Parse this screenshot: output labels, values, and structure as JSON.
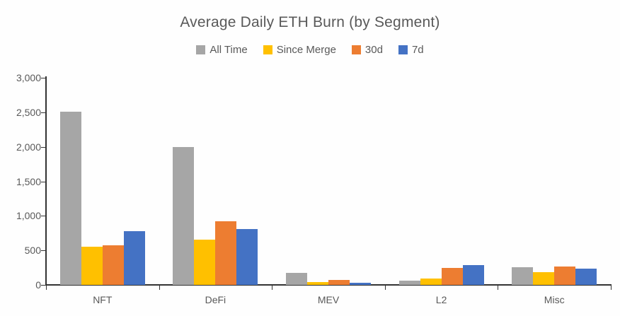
{
  "chart_data": {
    "type": "bar",
    "title": "Average Daily ETH Burn (by Segment)",
    "xlabel": "",
    "ylabel": "",
    "categories": [
      "NFT",
      "DeFi",
      "MEV",
      "L2",
      "Misc"
    ],
    "series": [
      {
        "name": "All Time",
        "color": "#a6a6a6",
        "values": [
          2510,
          2000,
          170,
          65,
          255
        ]
      },
      {
        "name": "Since Merge",
        "color": "#ffc000",
        "values": [
          555,
          660,
          45,
          90,
          185
        ]
      },
      {
        "name": "30d",
        "color": "#ed7d31",
        "values": [
          575,
          920,
          70,
          245,
          265
        ]
      },
      {
        "name": "7d",
        "color": "#4472c4",
        "values": [
          780,
          805,
          30,
          290,
          235
        ]
      }
    ],
    "ylim": [
      0,
      3000
    ],
    "ytick_step": 500,
    "ytick_labels": [
      "0",
      "500",
      "1,000",
      "1,500",
      "2,000",
      "2,500",
      "3,000"
    ],
    "grid": false,
    "legend_position": "top",
    "colors": {
      "title_text": "#595959",
      "axis_line": "#333333",
      "tick_text": "#595959",
      "background": "#fefefe"
    }
  }
}
